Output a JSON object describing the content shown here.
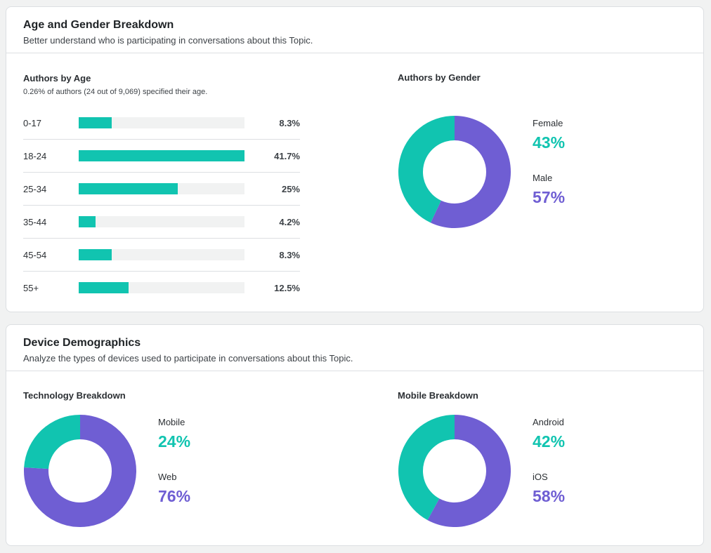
{
  "colors": {
    "teal": "#11c4b0",
    "purple": "#6f5ed3",
    "track": "#f1f2f2"
  },
  "age_gender": {
    "title": "Age and Gender Breakdown",
    "subtitle": "Better understand who is participating in conversations about this Topic.",
    "by_age": {
      "title": "Authors by Age",
      "note": "0.26% of authors (24 out of 9,069) specified their age.",
      "rows": [
        {
          "label": "0-17",
          "value": "8.3%",
          "pct": 8.3
        },
        {
          "label": "18-24",
          "value": "41.7%",
          "pct": 41.7
        },
        {
          "label": "25-34",
          "value": "25%",
          "pct": 25
        },
        {
          "label": "35-44",
          "value": "4.2%",
          "pct": 4.2
        },
        {
          "label": "45-54",
          "value": "8.3%",
          "pct": 8.3
        },
        {
          "label": "55+",
          "value": "12.5%",
          "pct": 12.5
        }
      ]
    },
    "by_gender": {
      "title": "Authors by Gender",
      "items": [
        {
          "label": "Female",
          "value": "43%",
          "pct": 43,
          "color": "#11c4b0"
        },
        {
          "label": "Male",
          "value": "57%",
          "pct": 57,
          "color": "#6f5ed3"
        }
      ]
    }
  },
  "device": {
    "title": "Device Demographics",
    "subtitle": "Analyze the types of devices used to participate in conversations about this Topic.",
    "technology": {
      "title": "Technology Breakdown",
      "items": [
        {
          "label": "Mobile",
          "value": "24%",
          "pct": 24,
          "color": "#11c4b0"
        },
        {
          "label": "Web",
          "value": "76%",
          "pct": 76,
          "color": "#6f5ed3"
        }
      ]
    },
    "mobile": {
      "title": "Mobile Breakdown",
      "items": [
        {
          "label": "Android",
          "value": "42%",
          "pct": 42,
          "color": "#11c4b0"
        },
        {
          "label": "iOS",
          "value": "58%",
          "pct": 58,
          "color": "#6f5ed3"
        }
      ]
    }
  }
}
